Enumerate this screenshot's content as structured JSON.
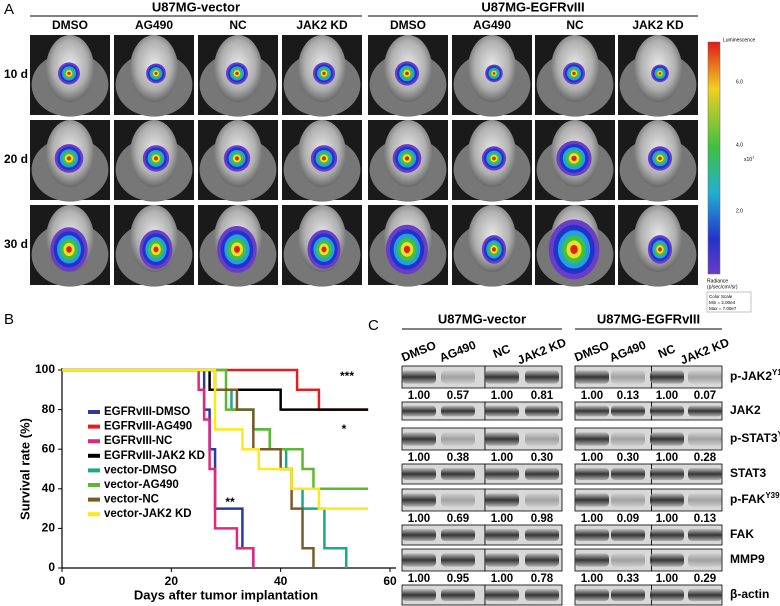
{
  "panel_a": {
    "label": "A",
    "groups": [
      "U87MG-vector",
      "U87MG-EGFRvIII"
    ],
    "columns": [
      "DMSO",
      "AG490",
      "NC",
      "JAK2 KD",
      "DMSO",
      "AG490",
      "NC",
      "JAK2 KD"
    ],
    "rows": [
      "10 d",
      "20 d",
      "30 d"
    ],
    "colorbar": {
      "title": "Luminescence",
      "ticks": [
        "6.0",
        "4.0",
        "2.0"
      ],
      "multiplier": "x10",
      "exponent": "7",
      "unit": "Radiance",
      "unit_detail": "(p/sec/cm²/sr)",
      "scale": [
        "Color Scale",
        "Min = 2.00e4",
        "Max = 7.00e7"
      ]
    }
  },
  "chart_data": {
    "type": "line",
    "label": "B",
    "drawstyle": "steps-post",
    "xlabel": "Days after tumor implantation",
    "ylabel": "Survival rate (%)",
    "xlim": [
      0,
      60
    ],
    "xticks": [
      0,
      20,
      40,
      60
    ],
    "ylim": [
      0,
      100
    ],
    "yticks": [
      0,
      20,
      40,
      60,
      80,
      100
    ],
    "legend": "upper left",
    "annotations": [
      "***",
      "*",
      "**"
    ],
    "series": [
      {
        "name": "EGFRvIII-DMSO",
        "color": "#2b3a9e",
        "x": [
          0,
          26,
          27,
          28,
          33,
          35
        ],
        "values": [
          100,
          80,
          60,
          30,
          10,
          0
        ]
      },
      {
        "name": "EGFRvIII-AG490",
        "color": "#e02020",
        "x": [
          0,
          43,
          47,
          56
        ],
        "values": [
          100,
          90,
          80,
          80
        ]
      },
      {
        "name": "EGFRvIII-NC",
        "color": "#e0287d",
        "x": [
          0,
          25,
          26,
          27,
          28,
          32,
          35
        ],
        "values": [
          100,
          90,
          75,
          50,
          20,
          10,
          0
        ]
      },
      {
        "name": "EGFRvIII-JAK2 KD",
        "color": "#000000",
        "x": [
          0,
          27,
          40,
          56
        ],
        "values": [
          100,
          90,
          80,
          80
        ]
      },
      {
        "name": "vector-DMSO",
        "color": "#1aa88f",
        "x": [
          0,
          28,
          31,
          35,
          38,
          41,
          42,
          44,
          48,
          52
        ],
        "values": [
          100,
          90,
          80,
          70,
          60,
          50,
          40,
          30,
          10,
          0
        ]
      },
      {
        "name": "vector-AG490",
        "color": "#5db830",
        "x": [
          0,
          30,
          35,
          38,
          44,
          46,
          56
        ],
        "values": [
          100,
          80,
          70,
          60,
          50,
          40,
          40
        ]
      },
      {
        "name": "vector-NC",
        "color": "#7a5a2a",
        "x": [
          0,
          28,
          32,
          35,
          40,
          42,
          44,
          46
        ],
        "values": [
          100,
          90,
          80,
          60,
          50,
          30,
          10,
          0
        ]
      },
      {
        "name": "vector-JAK2 KD",
        "color": "#ffe81a",
        "x": [
          0,
          28,
          33,
          36,
          42,
          47,
          56
        ],
        "values": [
          100,
          70,
          60,
          50,
          40,
          30,
          30
        ]
      }
    ]
  },
  "panel_c": {
    "label": "C",
    "groups": [
      "U87MG-vector",
      "U87MG-EGFRvIII"
    ],
    "lanes": [
      "DMSO",
      "AG490",
      "NC",
      "JAK2 KD",
      "DMSO",
      "AG490",
      "NC",
      "JAK2 KD"
    ],
    "rows": [
      {
        "name": "p-JAK2",
        "site": "Y1007/8",
        "quant": [
          "1.00",
          "0.57",
          "1.00",
          "0.81",
          "1.00",
          "0.13",
          "1.00",
          "0.07"
        ]
      },
      {
        "name": "JAK2"
      },
      {
        "name": "p-STAT3",
        "site": "Y705",
        "quant": [
          "1.00",
          "0.38",
          "1.00",
          "0.30",
          "1.00",
          "0.30",
          "1.00",
          "0.28"
        ]
      },
      {
        "name": "STAT3"
      },
      {
        "name": "p-FAK",
        "site": "Y397",
        "quant": [
          "1.00",
          "0.69",
          "1.00",
          "0.98",
          "1.00",
          "0.09",
          "1.00",
          "0.13"
        ]
      },
      {
        "name": "FAK"
      },
      {
        "name": "MMP9",
        "quant": [
          "1.00",
          "0.95",
          "1.00",
          "0.78",
          "1.00",
          "0.33",
          "1.00",
          "0.29"
        ]
      },
      {
        "name": "β-actin"
      }
    ]
  }
}
